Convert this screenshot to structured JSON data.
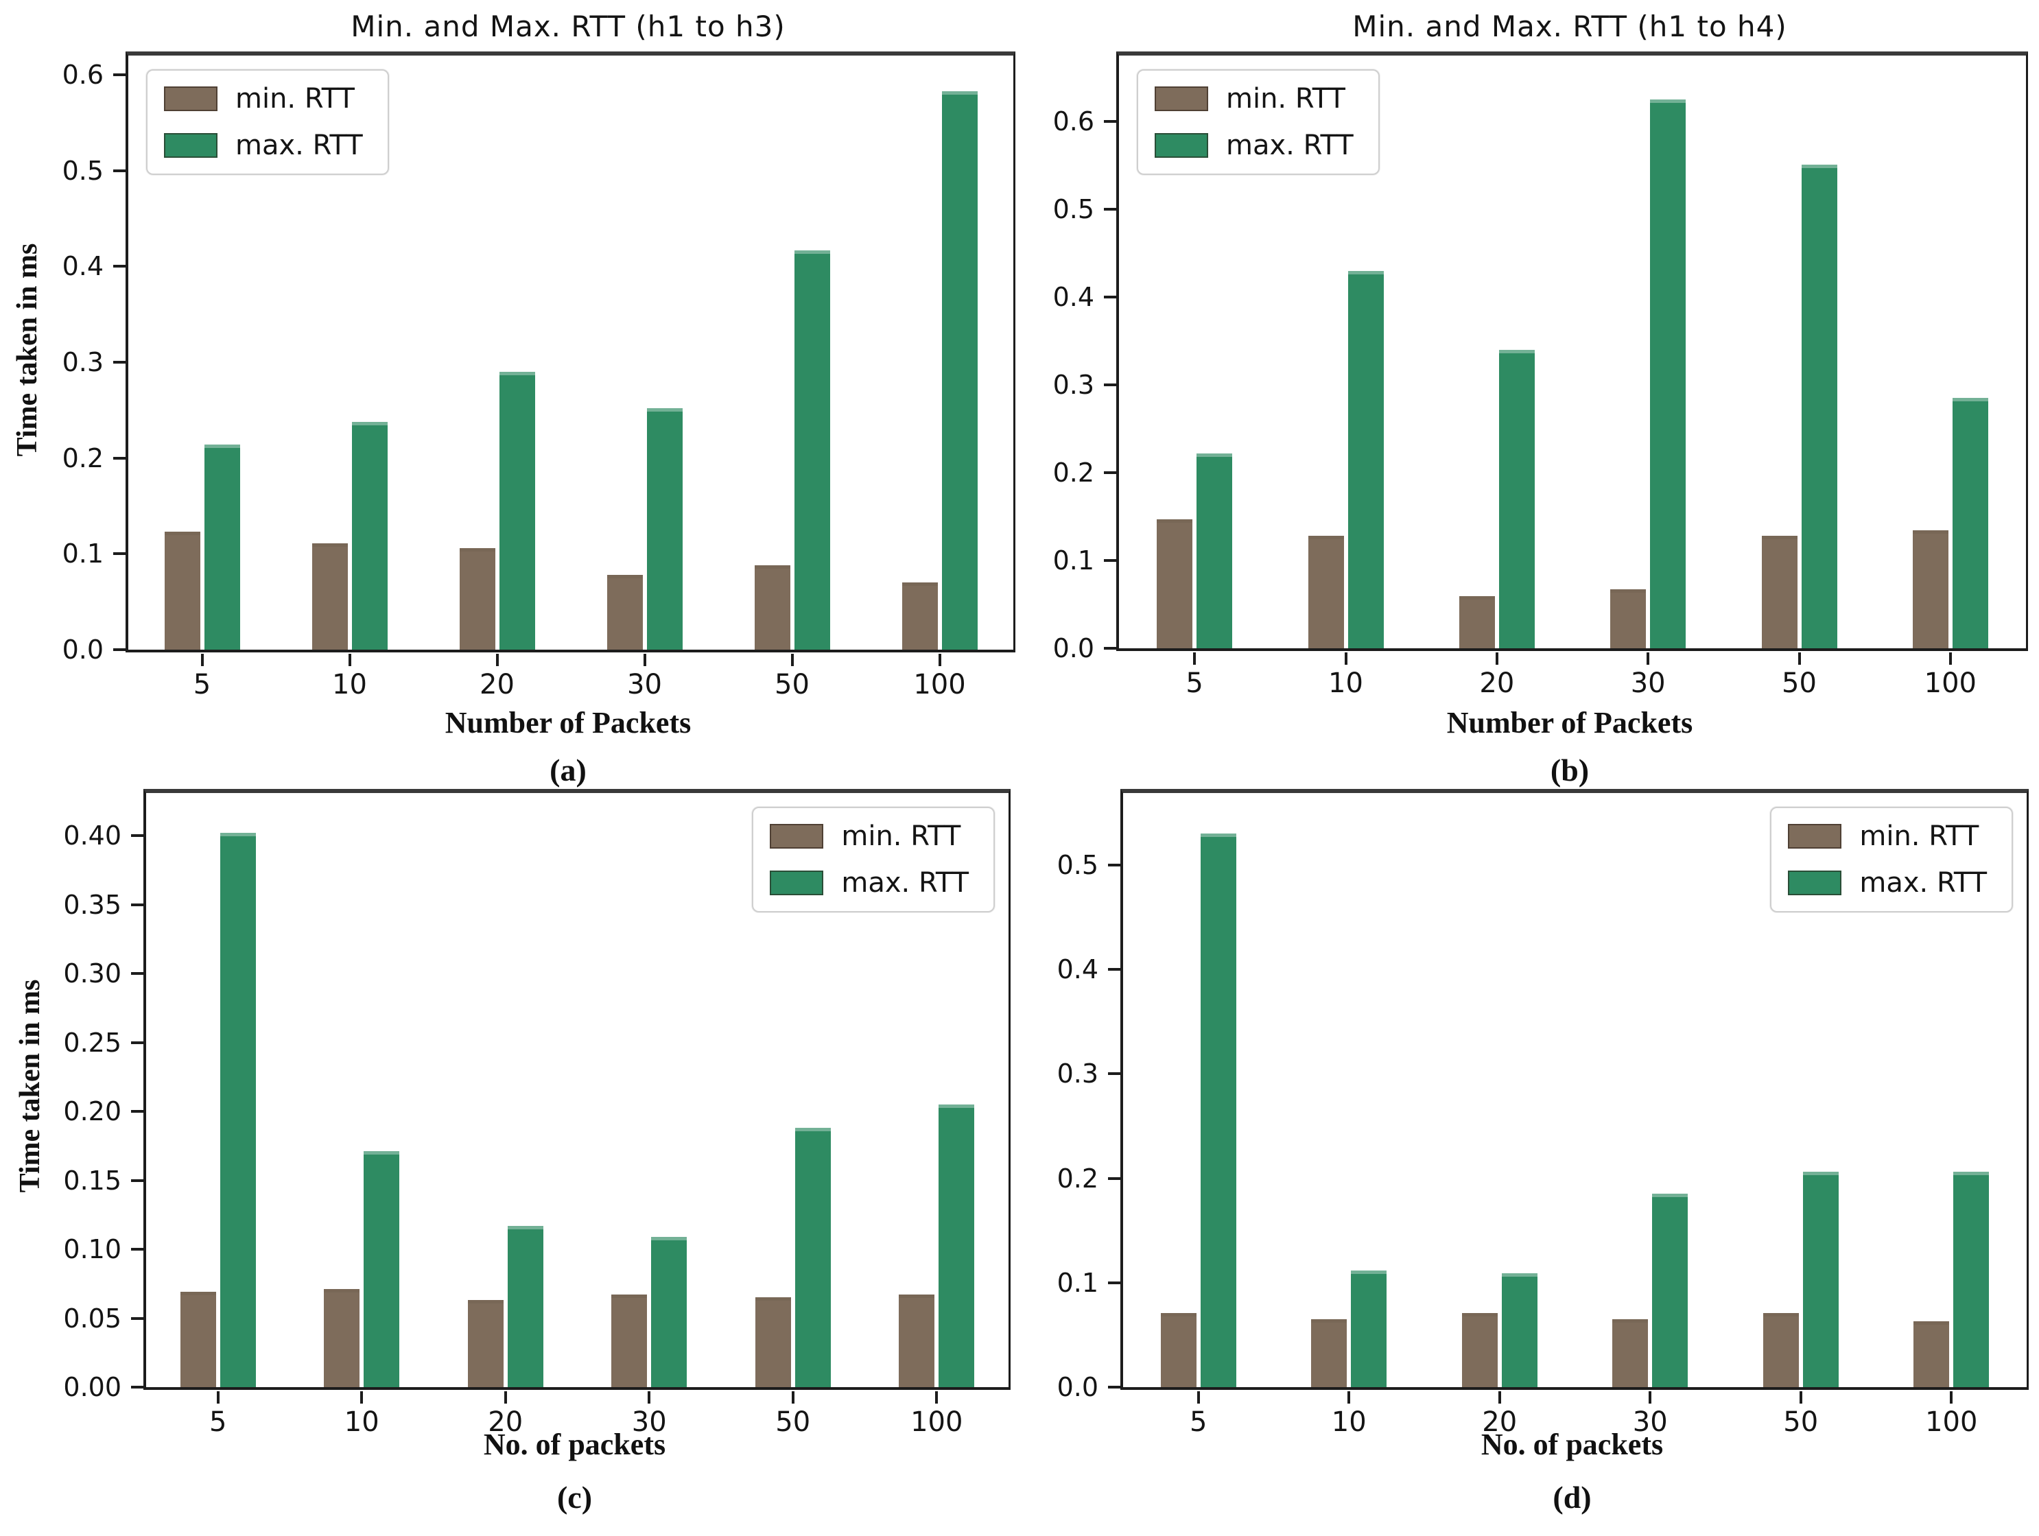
{
  "figure": {
    "background_color": "#ffffff",
    "min_color": "#7e6c5b",
    "max_color": "#2e8b62"
  },
  "chart_data": [
    {
      "id": "a",
      "type": "bar",
      "title": "Min. and Max. RTT (h1 to h3)",
      "xlabel": "Number of Packets",
      "ylabel": "Time taken in ms",
      "caption": "(a)",
      "categories": [
        "5",
        "10",
        "20",
        "30",
        "50",
        "100"
      ],
      "ytick_labels": [
        "0.0",
        "0.1",
        "0.2",
        "0.3",
        "0.4",
        "0.5",
        "0.6"
      ],
      "ylim": [
        0,
        0.62
      ],
      "grid": false,
      "legend_position": "upper-left",
      "series": [
        {
          "name": "min. RTT",
          "color": "#7e6c5b",
          "values": [
            0.123,
            0.111,
            0.106,
            0.078,
            0.088,
            0.07
          ]
        },
        {
          "name": "max. RTT",
          "color": "#2e8b62",
          "values": [
            0.214,
            0.238,
            0.29,
            0.252,
            0.417,
            0.583
          ]
        }
      ]
    },
    {
      "id": "b",
      "type": "bar",
      "title": "Min. and Max. RTT (h1 to h4)",
      "xlabel": "Number of Packets",
      "ylabel": "",
      "caption": "(b)",
      "categories": [
        "5",
        "10",
        "20",
        "30",
        "50",
        "100"
      ],
      "ytick_labels": [
        "0.0",
        "0.1",
        "0.2",
        "0.3",
        "0.4",
        "0.5",
        "0.6"
      ],
      "ylim": [
        0,
        0.675
      ],
      "grid": false,
      "legend_position": "upper-left",
      "series": [
        {
          "name": "min. RTT",
          "color": "#7e6c5b",
          "values": [
            0.147,
            0.128,
            0.059,
            0.067,
            0.128,
            0.134
          ]
        },
        {
          "name": "max. RTT",
          "color": "#2e8b62",
          "values": [
            0.222,
            0.43,
            0.34,
            0.625,
            0.551,
            0.285
          ]
        }
      ]
    },
    {
      "id": "c",
      "type": "bar",
      "title": "",
      "xlabel": "No. of packets",
      "ylabel": "Time taken in ms",
      "caption": "(c)",
      "categories": [
        "5",
        "10",
        "20",
        "30",
        "50",
        "100"
      ],
      "ytick_labels": [
        "0.00",
        "0.05",
        "0.10",
        "0.15",
        "0.20",
        "0.25",
        "0.30",
        "0.35",
        "0.40"
      ],
      "ylim": [
        0,
        0.431
      ],
      "grid": false,
      "legend_position": "upper-right",
      "series": [
        {
          "name": "min. RTT",
          "color": "#7e6c5b",
          "values": [
            0.069,
            0.071,
            0.063,
            0.067,
            0.065,
            0.067
          ]
        },
        {
          "name": "max. RTT",
          "color": "#2e8b62",
          "values": [
            0.402,
            0.171,
            0.117,
            0.109,
            0.188,
            0.205
          ]
        }
      ]
    },
    {
      "id": "d",
      "type": "bar",
      "title": "",
      "xlabel": "No. of packets",
      "ylabel": "",
      "caption": "(d)",
      "categories": [
        "5",
        "10",
        "20",
        "30",
        "50",
        "100"
      ],
      "ytick_labels": [
        "0.0",
        "0.1",
        "0.2",
        "0.3",
        "0.4",
        "0.5"
      ],
      "ylim": [
        0,
        0.569
      ],
      "grid": false,
      "legend_position": "upper-right",
      "series": [
        {
          "name": "min. RTT",
          "color": "#7e6c5b",
          "values": [
            0.071,
            0.065,
            0.071,
            0.065,
            0.071,
            0.063
          ]
        },
        {
          "name": "max. RTT",
          "color": "#2e8b62",
          "values": [
            0.53,
            0.112,
            0.109,
            0.185,
            0.206,
            0.206
          ]
        }
      ]
    }
  ]
}
